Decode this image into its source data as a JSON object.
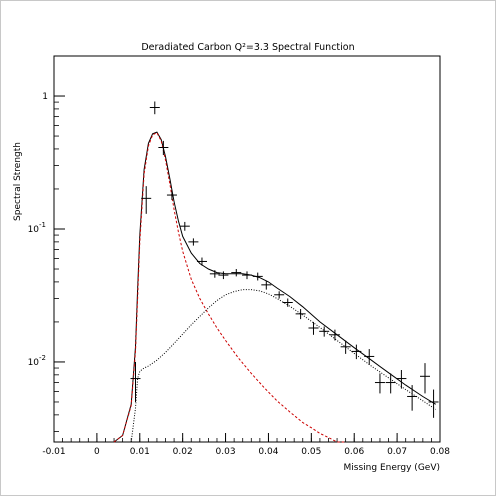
{
  "chart_data": {
    "type": "scatter",
    "title": "Deradiated Carbon Q²=3.3 Spectral Function",
    "xlabel": "Missing Energy (GeV)",
    "ylabel": "Spectral Strength",
    "xlim": [
      -0.01,
      0.08
    ],
    "ylim": [
      0.0025,
      2.0
    ],
    "yscale": "log",
    "x_ticks": [
      -0.01,
      0,
      0.01,
      0.02,
      0.03,
      0.04,
      0.05,
      0.06,
      0.07,
      0.08
    ],
    "x_tick_labels": [
      "-0.01",
      "0",
      "0.01",
      "0.02",
      "0.03",
      "0.04",
      "0.05",
      "0.06",
      "0.07",
      "0.08"
    ],
    "y_ticks": [
      {
        "value": 1,
        "base": "1",
        "exp": ""
      },
      {
        "value": 0.1,
        "base": "10",
        "exp": "-1"
      },
      {
        "value": 0.01,
        "base": "10",
        "exp": "-2"
      }
    ],
    "grid": false,
    "series": [
      {
        "kind": "points",
        "color": "#000000",
        "x": [
          0.009,
          0.0115,
          0.0135,
          0.0155,
          0.0175,
          0.0205,
          0.0225,
          0.0245,
          0.0275,
          0.0295,
          0.0325,
          0.035,
          0.0375,
          0.0395,
          0.0425,
          0.0445,
          0.0475,
          0.0505,
          0.053,
          0.0555,
          0.058,
          0.0605,
          0.0635,
          0.066,
          0.0685,
          0.071,
          0.0735,
          0.0765,
          0.0785
        ],
        "y": [
          0.0075,
          0.17,
          0.82,
          0.41,
          0.18,
          0.105,
          0.08,
          0.057,
          0.046,
          0.045,
          0.047,
          0.045,
          0.044,
          0.038,
          0.032,
          0.028,
          0.023,
          0.018,
          0.017,
          0.016,
          0.013,
          0.012,
          0.011,
          0.007,
          0.007,
          0.0075,
          0.0055,
          0.0078,
          0.005
        ],
        "yerr": [
          0.0025,
          0.04,
          0.09,
          0.05,
          0.015,
          0.008,
          0.005,
          0.004,
          0.003,
          0.003,
          0.003,
          0.003,
          0.003,
          0.003,
          0.002,
          0.002,
          0.002,
          0.002,
          0.0015,
          0.0015,
          0.0015,
          0.0015,
          0.0015,
          0.0012,
          0.0012,
          0.0012,
          0.0012,
          0.002,
          0.0012
        ]
      },
      {
        "kind": "line",
        "style": "solid",
        "color": "#000000",
        "x": [
          0.004,
          0.006,
          0.008,
          0.009,
          0.0095,
          0.01,
          0.011,
          0.012,
          0.013,
          0.014,
          0.015,
          0.016,
          0.017,
          0.018,
          0.019,
          0.02,
          0.022,
          0.024,
          0.026,
          0.028,
          0.03,
          0.032,
          0.034,
          0.036,
          0.038,
          0.04,
          0.042,
          0.045,
          0.048,
          0.052,
          0.056,
          0.06,
          0.064,
          0.068,
          0.072,
          0.076,
          0.079
        ],
        "y": [
          0.0025,
          0.0028,
          0.0048,
          0.013,
          0.035,
          0.09,
          0.28,
          0.44,
          0.52,
          0.535,
          0.47,
          0.35,
          0.24,
          0.16,
          0.115,
          0.088,
          0.066,
          0.055,
          0.05,
          0.047,
          0.046,
          0.046,
          0.046,
          0.045,
          0.043,
          0.04,
          0.036,
          0.031,
          0.026,
          0.02,
          0.016,
          0.0128,
          0.0103,
          0.0083,
          0.0067,
          0.0055,
          0.0048
        ]
      },
      {
        "kind": "line",
        "style": "dashed",
        "color": "#cc0000",
        "x": [
          0.004,
          0.006,
          0.008,
          0.009,
          0.0095,
          0.01,
          0.011,
          0.012,
          0.013,
          0.014,
          0.015,
          0.016,
          0.017,
          0.018,
          0.019,
          0.02,
          0.022,
          0.024,
          0.026,
          0.028,
          0.03,
          0.033,
          0.036,
          0.039,
          0.042,
          0.045,
          0.048,
          0.05,
          0.052,
          0.054,
          0.056,
          0.058
        ],
        "y": [
          0.0025,
          0.0028,
          0.0047,
          0.012,
          0.03,
          0.08,
          0.26,
          0.42,
          0.51,
          0.53,
          0.46,
          0.33,
          0.22,
          0.14,
          0.095,
          0.068,
          0.042,
          0.03,
          0.023,
          0.018,
          0.0145,
          0.0107,
          0.0082,
          0.0064,
          0.0051,
          0.0042,
          0.0035,
          0.0032,
          0.0029,
          0.0027,
          0.0025,
          0.0023
        ]
      },
      {
        "kind": "line",
        "style": "dotted",
        "color": "#000000",
        "x": [
          0.008,
          0.009,
          0.0095,
          0.01,
          0.011,
          0.012,
          0.014,
          0.016,
          0.018,
          0.02,
          0.022,
          0.024,
          0.026,
          0.028,
          0.03,
          0.032,
          0.034,
          0.036,
          0.038,
          0.04,
          0.042,
          0.045,
          0.048,
          0.052,
          0.056,
          0.06,
          0.064,
          0.068,
          0.072,
          0.076,
          0.079
        ],
        "y": [
          0.0023,
          0.0045,
          0.0075,
          0.0085,
          0.009,
          0.0093,
          0.0103,
          0.0118,
          0.0138,
          0.0162,
          0.019,
          0.022,
          0.0255,
          0.029,
          0.032,
          0.0338,
          0.035,
          0.035,
          0.0342,
          0.0325,
          0.03,
          0.0262,
          0.0225,
          0.0182,
          0.0145,
          0.0116,
          0.0093,
          0.0076,
          0.0062,
          0.0051,
          0.0044
        ]
      }
    ]
  }
}
